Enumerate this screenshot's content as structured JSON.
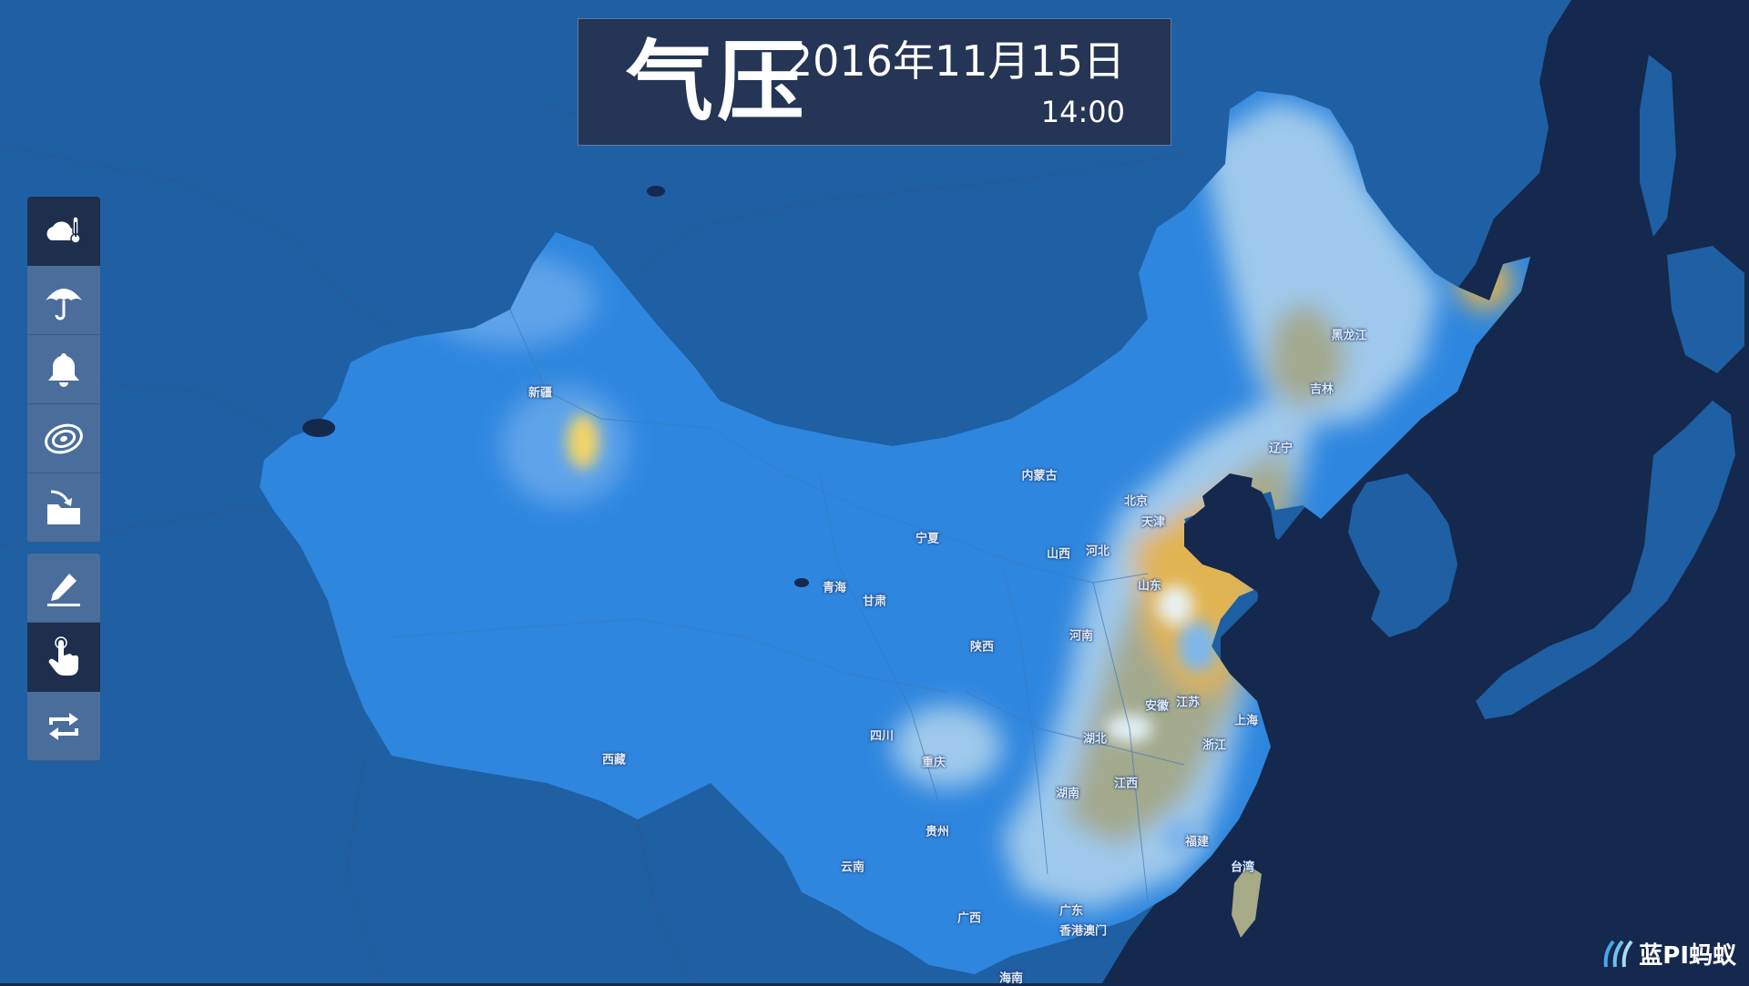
{
  "title": {
    "main": "气压",
    "date": "2016年11月15日",
    "time": "14:00"
  },
  "toolbar": {
    "groups": [
      [
        {
          "name": "weather-temperature-button",
          "icon": "cloud-thermometer-icon",
          "active": true
        },
        {
          "name": "rain-button",
          "icon": "umbrella-icon",
          "active": false
        },
        {
          "name": "alert-button",
          "icon": "bell-icon",
          "active": false
        },
        {
          "name": "pressure-contour-button",
          "icon": "contour-icon",
          "active": false
        },
        {
          "name": "import-button",
          "icon": "folder-arrow-icon",
          "active": false
        }
      ],
      [
        {
          "name": "draw-button",
          "icon": "pen-icon",
          "active": false
        },
        {
          "name": "pointer-button",
          "icon": "hand-pointer-icon",
          "active": true
        },
        {
          "name": "refresh-button",
          "icon": "loop-arrows-icon",
          "active": false
        }
      ]
    ]
  },
  "map": {
    "colors": {
      "ocean": "#14294d",
      "foreign_land": "#1f5fa3",
      "china_land": "#2e86de",
      "low_pressure": "#9fc9ec",
      "mid_pressure": "#a3a98d",
      "high_pressure": "#e1b452"
    },
    "labels": [
      {
        "text": "新疆"
      },
      {
        "text": "西藏"
      },
      {
        "text": "青海"
      },
      {
        "text": "甘肃"
      },
      {
        "text": "宁夏"
      },
      {
        "text": "内蒙古"
      },
      {
        "text": "黑龙江"
      },
      {
        "text": "吉林"
      },
      {
        "text": "辽宁"
      },
      {
        "text": "北京"
      },
      {
        "text": "天津"
      },
      {
        "text": "河北"
      },
      {
        "text": "山西"
      },
      {
        "text": "山东"
      },
      {
        "text": "河南"
      },
      {
        "text": "陕西"
      },
      {
        "text": "四川"
      },
      {
        "text": "重庆"
      },
      {
        "text": "湖北"
      },
      {
        "text": "安徽"
      },
      {
        "text": "江苏"
      },
      {
        "text": "上海"
      },
      {
        "text": "浙江"
      },
      {
        "text": "湖南"
      },
      {
        "text": "江西"
      },
      {
        "text": "贵州"
      },
      {
        "text": "云南"
      },
      {
        "text": "广西"
      },
      {
        "text": "广东"
      },
      {
        "text": "福建"
      },
      {
        "text": "台湾"
      },
      {
        "text": "海南"
      },
      {
        "text": "香港澳门"
      }
    ]
  },
  "logo": {
    "text": "蓝PI蚂蚁",
    "icon": "wave-logo-icon"
  }
}
